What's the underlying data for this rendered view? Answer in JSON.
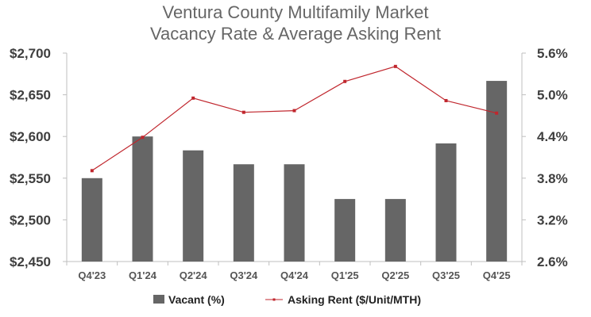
{
  "chart_data": {
    "type": "bar+line",
    "title": [
      "Ventura County Multifamily Market",
      "Vacancy Rate & Average Asking Rent"
    ],
    "categories": [
      "Q4'23",
      "Q1'24",
      "Q2'24",
      "Q3'24",
      "Q4'24",
      "Q1'25",
      "Q2'25",
      "Q3'25",
      "Q4'25"
    ],
    "series": [
      {
        "name": "Vacant (%)",
        "type": "bar",
        "axis": "right",
        "color": "#666666",
        "values": [
          3.8,
          4.4,
          4.2,
          4.0,
          4.0,
          3.5,
          3.5,
          4.3,
          5.2
        ]
      },
      {
        "name": "Asking Rent ($/Unit/MTH)",
        "type": "line",
        "axis": "left",
        "color": "#c0262d",
        "values": [
          2559,
          2599,
          2646,
          2629,
          2631,
          2666,
          2684,
          2643,
          2628
        ]
      }
    ],
    "y_left": {
      "ylim": [
        2450,
        2700
      ],
      "ticks": [
        2450,
        2500,
        2550,
        2600,
        2650,
        2700
      ],
      "tick_labels": [
        "$2,450",
        "$2,500",
        "$2,550",
        "$2,600",
        "$2,650",
        "$2,700"
      ]
    },
    "y_right": {
      "ylim": [
        2.6,
        5.6
      ],
      "ticks": [
        2.6,
        3.2,
        3.8,
        4.4,
        5.0,
        5.6
      ],
      "tick_labels": [
        "2.6%",
        "3.2%",
        "3.8%",
        "4.4%",
        "5.0%",
        "5.6%"
      ]
    },
    "grid": false,
    "legend_position": "bottom"
  }
}
